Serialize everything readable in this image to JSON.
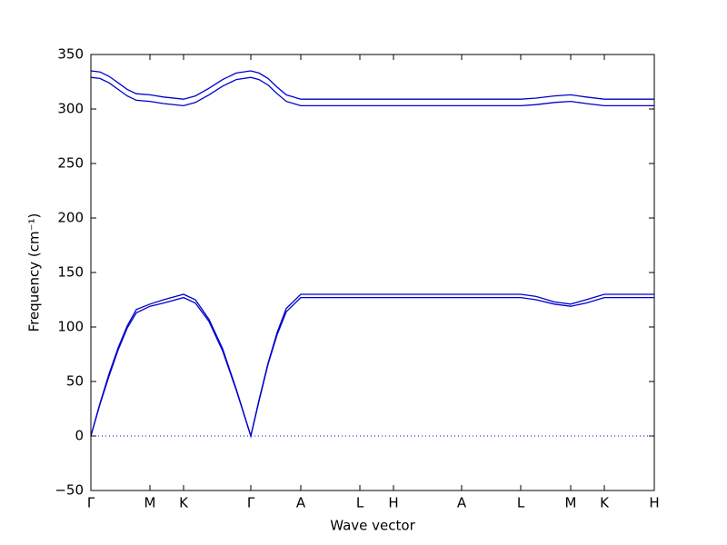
{
  "chart_data": {
    "type": "line",
    "xlabel": "Wave vector",
    "ylabel": "Frequency (cm⁻¹)",
    "x": [
      0,
      0.1,
      0.2,
      0.3,
      0.4,
      0.5,
      0.65,
      0.8,
      1.02,
      1.15,
      1.3,
      1.45,
      1.6,
      1.76,
      1.85,
      1.95,
      2.05,
      2.15,
      2.31,
      2.5,
      2.96,
      3.33,
      4.08,
      4.73,
      4.9,
      5.1,
      5.28,
      5.45,
      5.65,
      6.2
    ],
    "series": [
      {
        "color": "#0000cc",
        "values": [
          0,
          29,
          55,
          79,
          99,
          113,
          119,
          122,
          127,
          122,
          105,
          78,
          42,
          0,
          32,
          66,
          93,
          114,
          127,
          127,
          127,
          127,
          127,
          127,
          125,
          121,
          119,
          122,
          127,
          127
        ]
      },
      {
        "color": "#0000cc",
        "values": [
          0,
          30,
          57,
          81,
          101,
          116,
          121,
          125,
          130,
          125,
          107,
          80,
          43,
          0,
          33,
          67,
          95,
          117,
          130,
          130,
          130,
          130,
          130,
          130,
          128,
          123,
          121,
          125,
          130,
          130
        ]
      },
      {
        "color": "#0000cc",
        "values": [
          329,
          328,
          324,
          318,
          312,
          308,
          307,
          305,
          303,
          306,
          313,
          321,
          327,
          329,
          327,
          322,
          314,
          307,
          303,
          303,
          303,
          303,
          303,
          303,
          304,
          306,
          307,
          305,
          303,
          303
        ]
      },
      {
        "color": "#0000cc",
        "values": [
          335,
          334,
          330,
          324,
          318,
          314,
          313,
          311,
          309,
          312,
          319,
          327,
          333,
          335,
          333,
          328,
          320,
          313,
          309,
          309,
          309,
          309,
          309,
          309,
          310,
          312,
          313,
          311,
          309,
          309
        ]
      }
    ],
    "xlim": [
      0,
      6.2
    ],
    "xticks": [
      {
        "value": 0,
        "label": "Γ"
      },
      {
        "value": 0.65,
        "label": "M"
      },
      {
        "value": 1.02,
        "label": "K"
      },
      {
        "value": 1.76,
        "label": "Γ"
      },
      {
        "value": 2.31,
        "label": "A"
      },
      {
        "value": 2.96,
        "label": "L"
      },
      {
        "value": 3.33,
        "label": "H"
      },
      {
        "value": 4.08,
        "label": "A"
      },
      {
        "value": 4.73,
        "label": "L"
      },
      {
        "value": 5.28,
        "label": "M"
      },
      {
        "value": 5.65,
        "label": "K"
      },
      {
        "value": 6.2,
        "label": "H"
      }
    ],
    "ylim": [
      -50,
      350
    ],
    "yticks": [
      {
        "value": -50,
        "label": "−50"
      },
      0,
      50,
      100,
      150,
      200,
      250,
      300,
      350
    ],
    "reference_line": 0,
    "reference_color": "#0000ff"
  }
}
